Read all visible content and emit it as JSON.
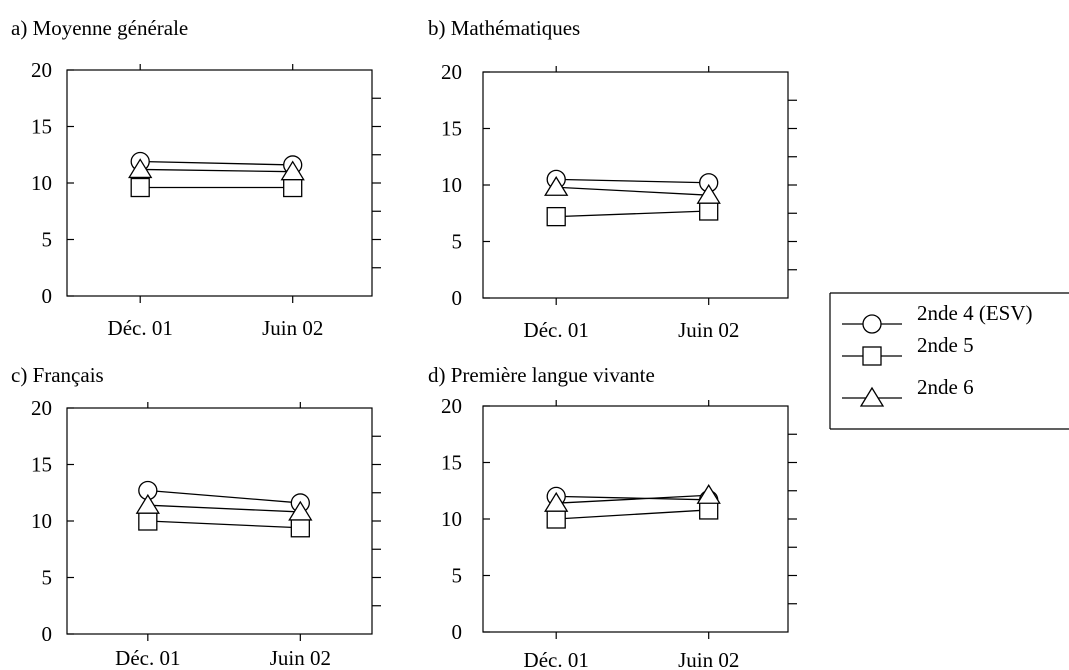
{
  "chart_data": [
    {
      "type": "line",
      "title": "a) Moyenne générale",
      "categories": [
        "Déc. 01",
        "Juin 02"
      ],
      "yticks": [
        0,
        5,
        10,
        15,
        20
      ],
      "ylim": [
        0,
        20
      ],
      "series": [
        {
          "name": "2nde 4 (ESV)",
          "marker": "circle",
          "values": [
            11.9,
            11.6
          ]
        },
        {
          "name": "2nde 5",
          "marker": "square",
          "values": [
            9.6,
            9.6
          ]
        },
        {
          "name": "2nde 6",
          "marker": "triangle",
          "values": [
            11.2,
            11.0
          ]
        }
      ]
    },
    {
      "type": "line",
      "title": "b) Mathématiques",
      "categories": [
        "Déc. 01",
        "Juin 02"
      ],
      "yticks": [
        0,
        5,
        10,
        15,
        20
      ],
      "ylim": [
        0,
        20
      ],
      "series": [
        {
          "name": "2nde 4 (ESV)",
          "marker": "circle",
          "values": [
            10.5,
            10.2
          ]
        },
        {
          "name": "2nde 5",
          "marker": "square",
          "values": [
            7.2,
            7.7
          ]
        },
        {
          "name": "2nde 6",
          "marker": "triangle",
          "values": [
            9.8,
            9.1
          ]
        }
      ]
    },
    {
      "type": "line",
      "title": "c) Français",
      "categories": [
        "Déc. 01",
        "Juin 02"
      ],
      "yticks": [
        0,
        5,
        10,
        15,
        20
      ],
      "ylim": [
        0,
        20
      ],
      "series": [
        {
          "name": "2nde 4 (ESV)",
          "marker": "circle",
          "values": [
            12.7,
            11.6
          ]
        },
        {
          "name": "2nde 5",
          "marker": "square",
          "values": [
            10.0,
            9.4
          ]
        },
        {
          "name": "2nde 6",
          "marker": "triangle",
          "values": [
            11.4,
            10.8
          ]
        }
      ]
    },
    {
      "type": "line",
      "title": "d) Première langue vivante",
      "categories": [
        "Déc. 01",
        "Juin 02"
      ],
      "yticks": [
        0,
        5,
        10,
        15,
        20
      ],
      "ylim": [
        0,
        20
      ],
      "series": [
        {
          "name": "2nde 4 (ESV)",
          "marker": "circle",
          "values": [
            12.0,
            11.7
          ]
        },
        {
          "name": "2nde 5",
          "marker": "square",
          "values": [
            10.0,
            10.8
          ]
        },
        {
          "name": "2nde 6",
          "marker": "triangle",
          "values": [
            11.4,
            12.1
          ]
        }
      ]
    }
  ],
  "legend": {
    "placement": "right",
    "items": [
      {
        "label": "2nde 4 (ESV)",
        "marker": "circle"
      },
      {
        "label": "2nde 5",
        "marker": "square"
      },
      {
        "label": "2nde 6",
        "marker": "triangle"
      }
    ]
  },
  "colors": {
    "line": "#000000",
    "marker_fill": "#ffffff",
    "background": "#ffffff"
  }
}
